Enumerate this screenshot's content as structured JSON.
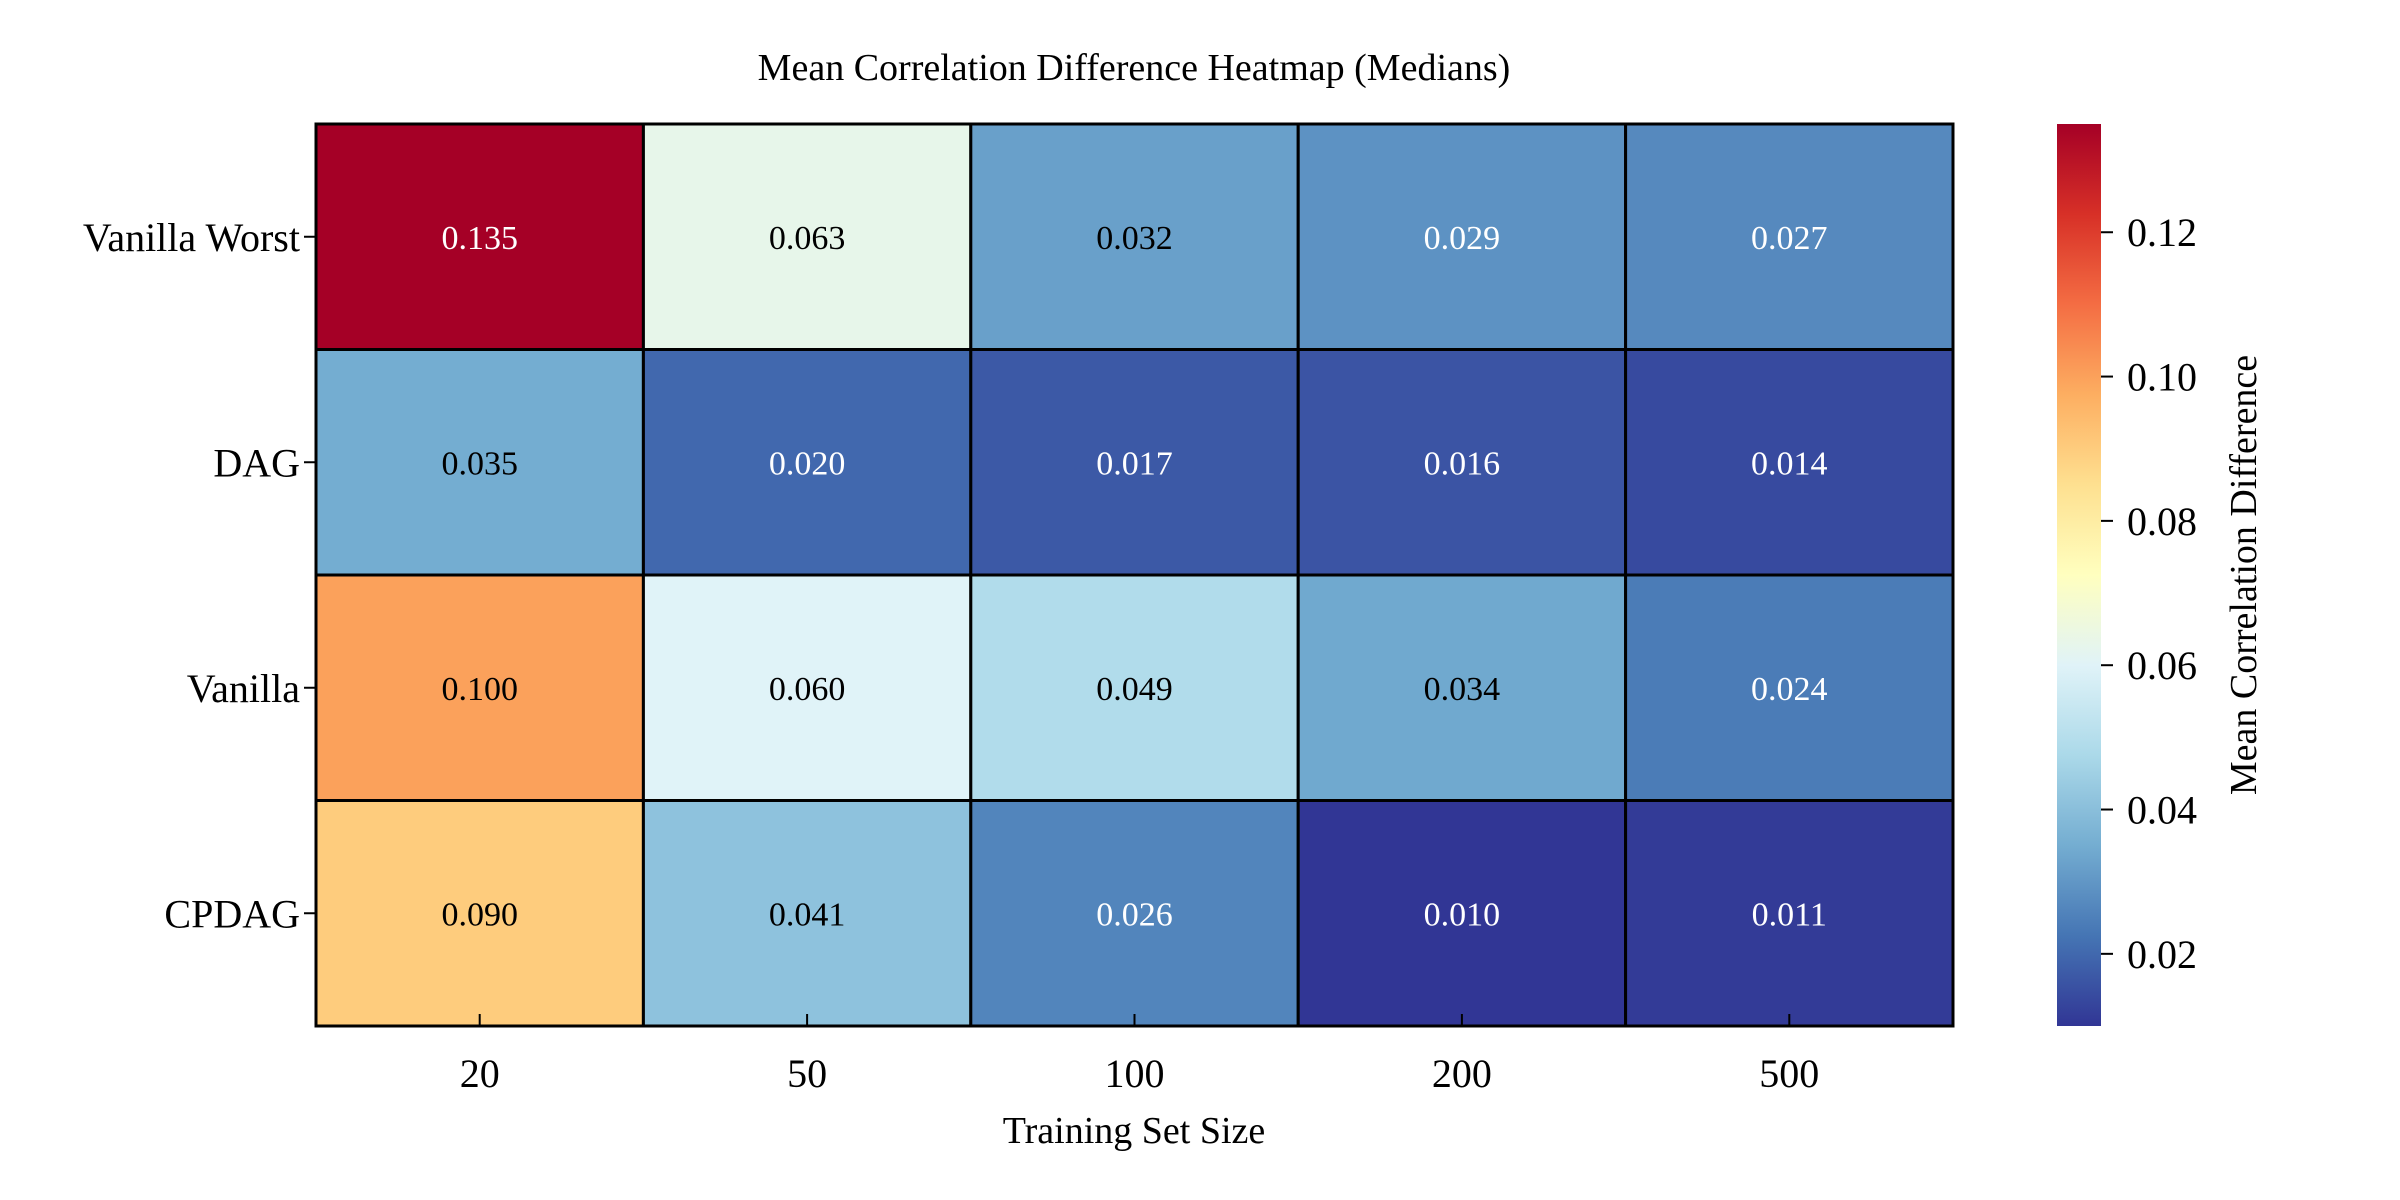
{
  "chart_data": {
    "type": "heatmap",
    "title": "Mean Correlation Difference Heatmap (Medians)",
    "xlabel": "Training Set Size",
    "ylabel": "",
    "x_categories": [
      "20",
      "50",
      "100",
      "200",
      "500"
    ],
    "y_categories": [
      "Vanilla Worst",
      "DAG",
      "Vanilla",
      "CPDAG"
    ],
    "values": [
      [
        0.135,
        0.063,
        0.032,
        0.029,
        0.027
      ],
      [
        0.035,
        0.02,
        0.017,
        0.016,
        0.014
      ],
      [
        0.1,
        0.06,
        0.049,
        0.034,
        0.024
      ],
      [
        0.09,
        0.041,
        0.026,
        0.01,
        0.011
      ]
    ],
    "cell_labels": [
      [
        "0.135",
        "0.063",
        "0.032",
        "0.029",
        "0.027"
      ],
      [
        "0.035",
        "0.020",
        "0.017",
        "0.016",
        "0.014"
      ],
      [
        "0.100",
        "0.060",
        "0.049",
        "0.034",
        "0.024"
      ],
      [
        "0.090",
        "0.041",
        "0.026",
        "0.010",
        "0.011"
      ]
    ],
    "colormap": "RdYlBu_r",
    "color_range": [
      0.01,
      0.135
    ],
    "colorbar": {
      "label": "Mean Correlation Difference",
      "ticks": [
        0.02,
        0.04,
        0.06,
        0.08,
        0.1,
        0.12
      ],
      "tick_labels": [
        "0.02",
        "0.04",
        "0.06",
        "0.08",
        "0.10",
        "0.12"
      ]
    },
    "grid": false,
    "cell_borders": true,
    "border_color": "#000000",
    "text_colors": {
      "light": "#ffffff",
      "dark": "#000000"
    }
  }
}
